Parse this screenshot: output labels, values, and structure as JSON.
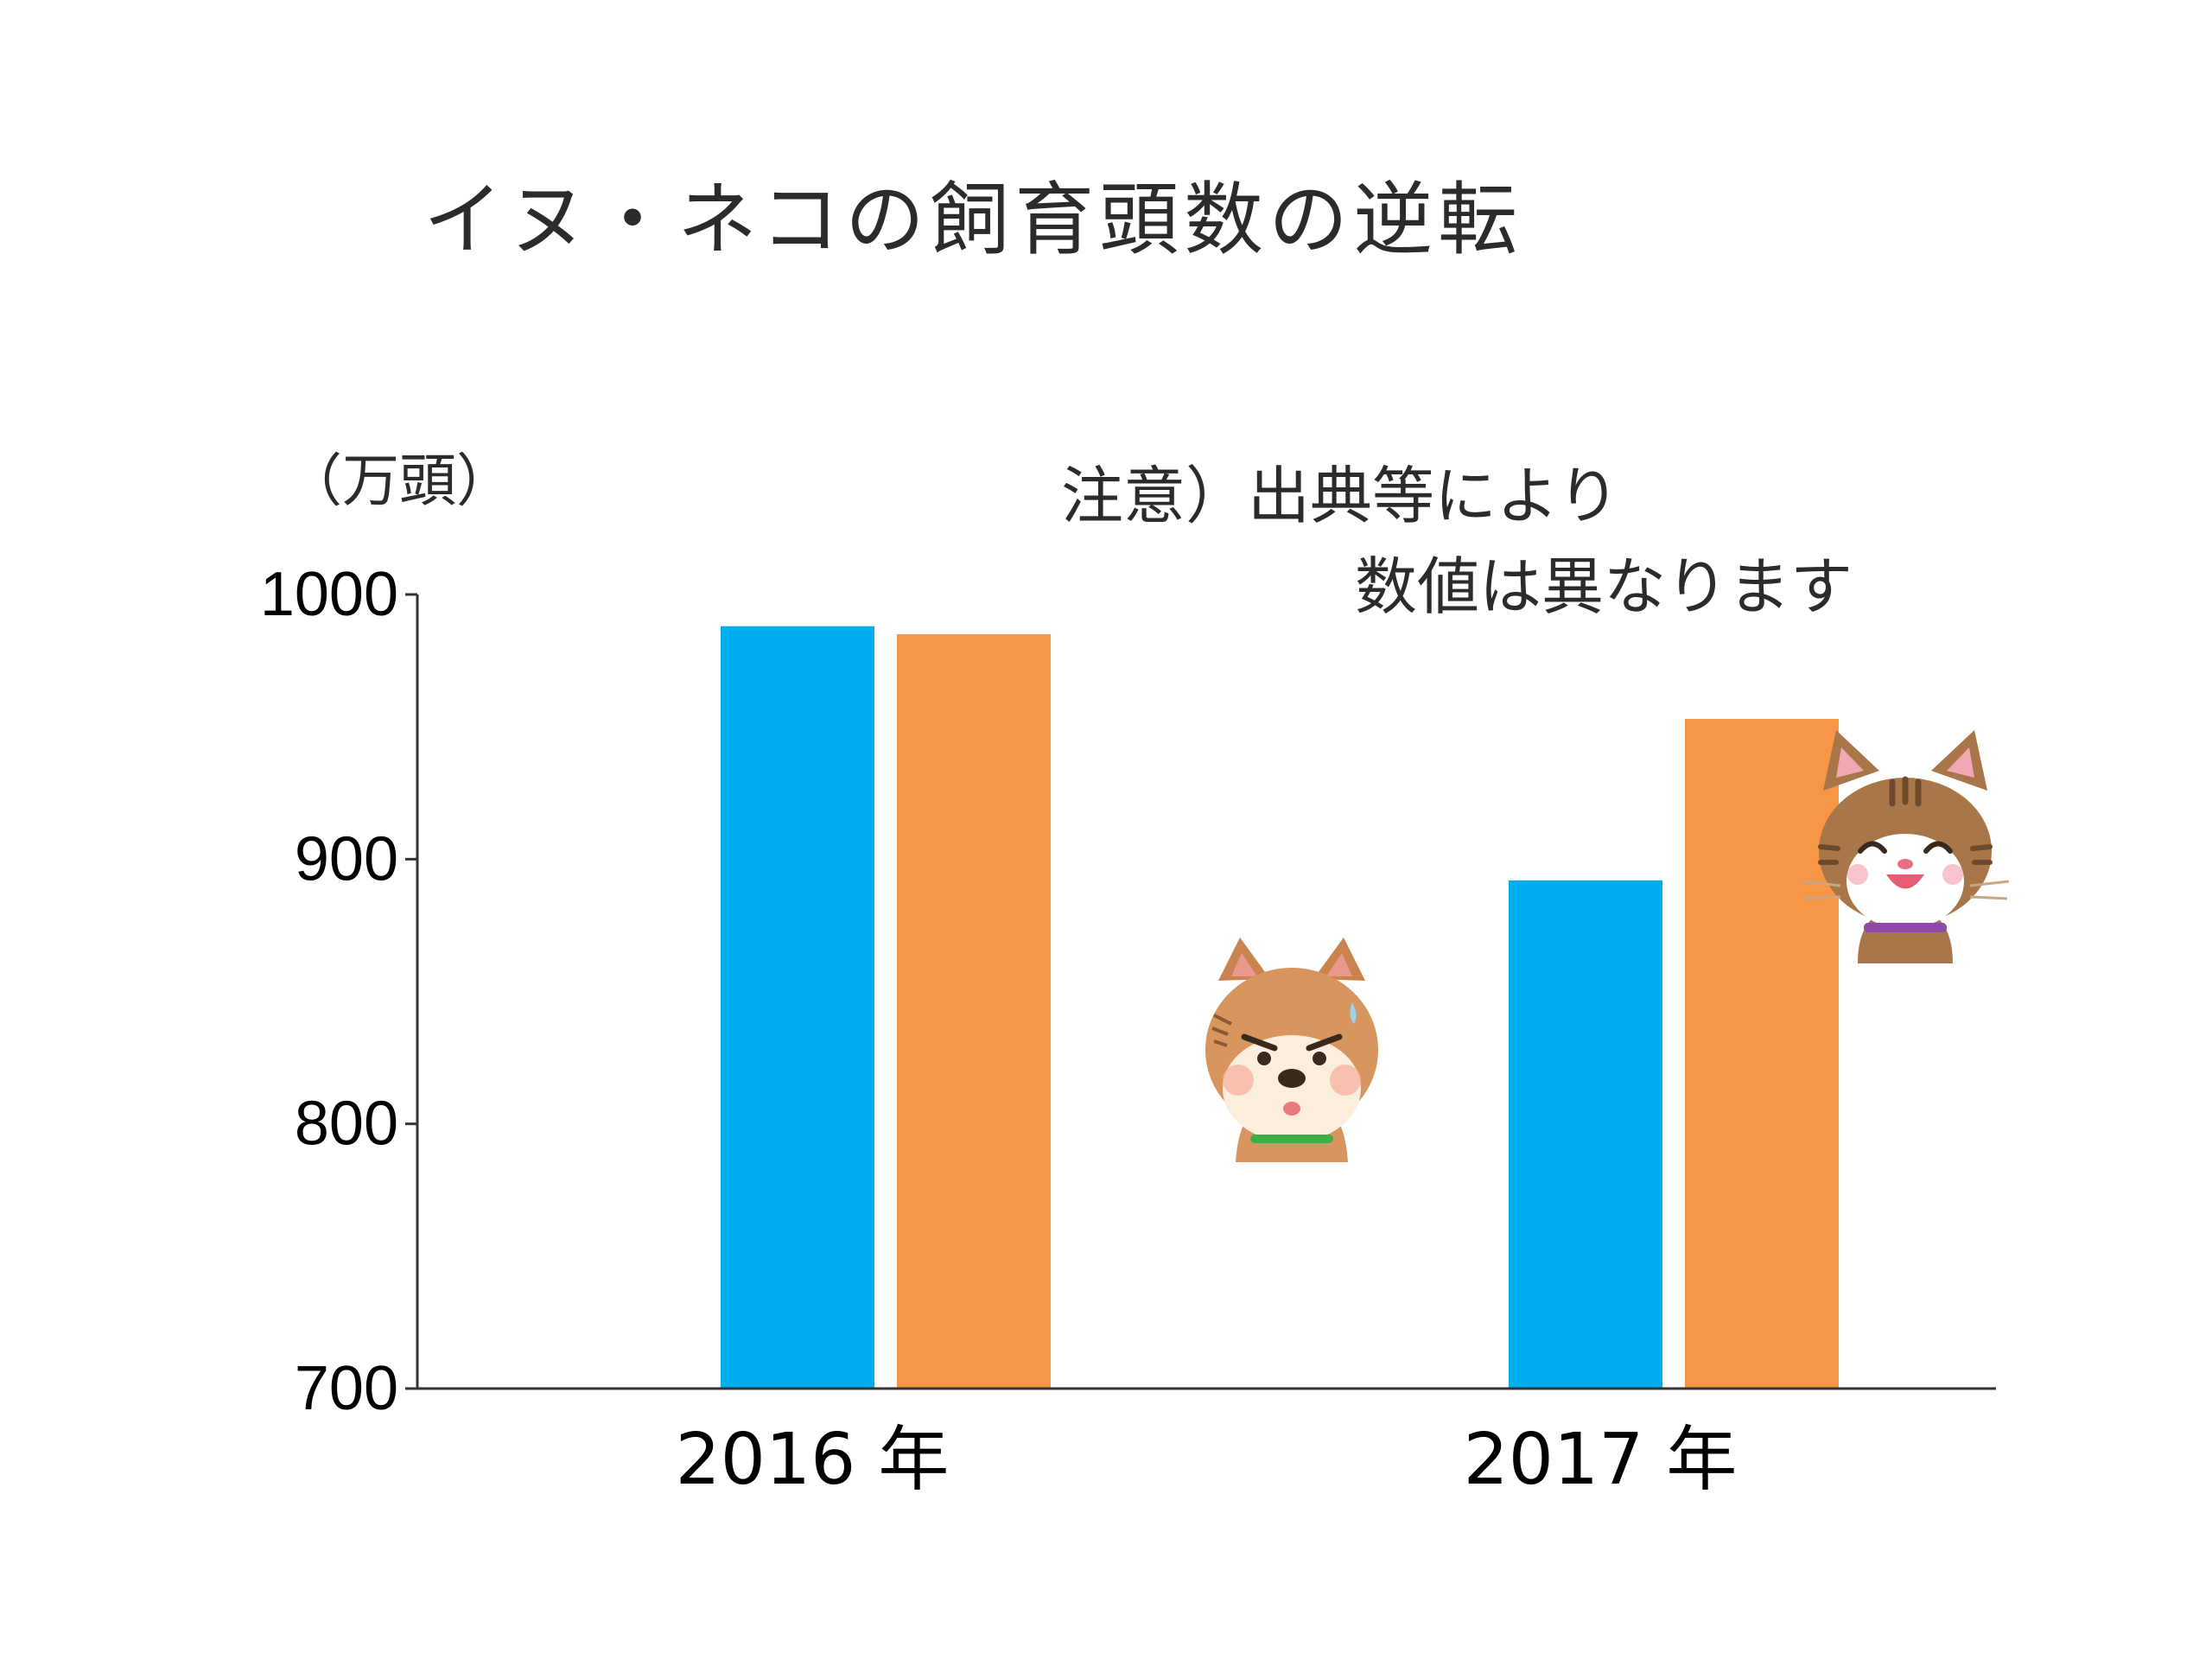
{
  "slide": {
    "title": "イヌ・ネコの飼育頭数の逆転",
    "unit_label": "（万頭）",
    "note_line1": "注意）出典等により",
    "note_line2": "数値は異なります"
  },
  "illustrations": {
    "dog": "worried-dog-icon",
    "cat": "happy-cat-icon"
  },
  "colors": {
    "dog_series": "#00AEEF",
    "cat_series": "#F79646",
    "axis": "#333333"
  },
  "chart_data": {
    "type": "bar",
    "categories": [
      "2016 年",
      "2017 年"
    ],
    "series": [
      {
        "values": [
          988,
          892
        ]
      },
      {
        "values": [
          985,
          953
        ]
      }
    ],
    "ylim": [
      700,
      1000
    ],
    "yticks": [
      "1000",
      "900",
      "800",
      "700"
    ],
    "grid": false,
    "legend": "none"
  }
}
